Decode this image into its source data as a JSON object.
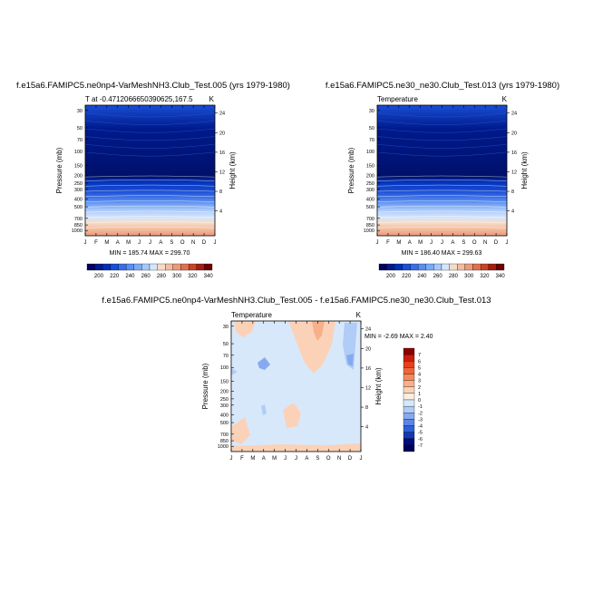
{
  "chart_data": [
    {
      "type": "heatmap",
      "variant": "contour-filled",
      "title": "f.e15a6.FAMIPC5.ne0np4-VarMeshNH3.Club_Test.005 (yrs 1979-1980)",
      "subtitle_left": "T at -0.4712066650390625,167.5",
      "units": "K",
      "ylabel": "Pressure (mb)",
      "ylabel_right": "Height (km)",
      "x_ticks": [
        "J",
        "F",
        "M",
        "A",
        "M",
        "J",
        "J",
        "A",
        "S",
        "O",
        "N",
        "D",
        "J"
      ],
      "y_ticks": [
        "30",
        "50",
        "70",
        "100",
        "150",
        "200",
        "250",
        "300",
        "400",
        "500",
        "700",
        "850",
        "1000"
      ],
      "y_ticks_right": [
        "24",
        "20",
        "16",
        "12",
        "8",
        "4"
      ],
      "minmax": "MIN = 185.74  MAX = 299.70",
      "colorbar": {
        "labels": [
          "200",
          "220",
          "240",
          "260",
          "280",
          "300",
          "320",
          "340"
        ],
        "colors": [
          "#000060",
          "#001a8c",
          "#0030b8",
          "#1a4ed6",
          "#3a6ee6",
          "#5a8ef0",
          "#7aaaf4",
          "#a8c8fa",
          "#d4e6fc",
          "#f6dcc8",
          "#f3bca0",
          "#ec9a78",
          "#e0704c",
          "#c84428",
          "#a81c10",
          "#6e0000"
        ]
      },
      "bands_top_to_bottom": [
        185,
        190,
        195,
        200,
        205,
        210,
        215,
        220,
        225,
        230,
        235,
        240,
        245,
        250,
        255,
        260,
        265,
        270,
        275,
        280,
        285,
        290,
        295,
        300
      ]
    },
    {
      "type": "heatmap",
      "variant": "contour-filled",
      "title": "f.e15a6.FAMIPC5.ne30_ne30.Club_Test.013 (yrs 1979-1980)",
      "subtitle_left": "Temperature",
      "units": "K",
      "ylabel": "Pressure (mb)",
      "ylabel_right": "Height (km)",
      "x_ticks": [
        "J",
        "F",
        "M",
        "A",
        "M",
        "J",
        "J",
        "A",
        "S",
        "O",
        "N",
        "D",
        "J"
      ],
      "y_ticks": [
        "30",
        "50",
        "70",
        "100",
        "150",
        "200",
        "250",
        "300",
        "400",
        "500",
        "700",
        "850",
        "1000"
      ],
      "y_ticks_right": [
        "24",
        "20",
        "16",
        "12",
        "8",
        "4"
      ],
      "minmax": "MIN = 186.40  MAX = 299.63",
      "colorbar": {
        "labels": [
          "200",
          "220",
          "240",
          "260",
          "280",
          "300",
          "320",
          "340"
        ],
        "colors": [
          "#000060",
          "#001a8c",
          "#0030b8",
          "#1a4ed6",
          "#3a6ee6",
          "#5a8ef0",
          "#7aaaf4",
          "#a8c8fa",
          "#d4e6fc",
          "#f6dcc8",
          "#f3bca0",
          "#ec9a78",
          "#e0704c",
          "#c84428",
          "#a81c10",
          "#6e0000"
        ]
      }
    },
    {
      "type": "heatmap",
      "variant": "contour-filled-difference",
      "title": "f.e15a6.FAMIPC5.ne0np4-VarMeshNH3.Club_Test.005 - f.e15a6.FAMIPC5.ne30_ne30.Club_Test.013",
      "subtitle_left": "Temperature",
      "units": "K",
      "ylabel": "Pressure (mb)",
      "ylabel_right": "Height (km)",
      "x_ticks": [
        "J",
        "F",
        "M",
        "A",
        "M",
        "J",
        "J",
        "A",
        "S",
        "O",
        "N",
        "D",
        "J"
      ],
      "y_ticks": [
        "30",
        "50",
        "70",
        "100",
        "150",
        "200",
        "250",
        "300",
        "400",
        "500",
        "700",
        "850",
        "1000"
      ],
      "y_ticks_right": [
        "24",
        "20",
        "16",
        "12",
        "8",
        "4"
      ],
      "minmax": "MIN =  -2.69 MAX =   2.40",
      "colorbar": {
        "labels": [
          "7",
          "6",
          "5",
          "4",
          "3",
          "2",
          "1",
          "0",
          "-1",
          "-2",
          "-3",
          "-4",
          "-5",
          "-6",
          "-7"
        ],
        "colors": [
          "#8c0000",
          "#c81e0a",
          "#e4401e",
          "#f0643a",
          "#f48a5c",
          "#f8b08a",
          "#fbd2b8",
          "#fdeee2",
          "#d8e8fb",
          "#b0ccf7",
          "#86aaf0",
          "#5a86e6",
          "#3060d6",
          "#1438b0",
          "#000c80",
          "#00005c"
        ]
      },
      "field_value_base": 0,
      "features": [
        {
          "label": "warm anomaly",
          "month": 7.8,
          "pressure": 30,
          "value": 2.4
        },
        {
          "label": "cool anomaly",
          "month": 3.6,
          "pressure": 70,
          "value": -2.0
        },
        {
          "label": "cool anomaly",
          "month": 11.5,
          "pressure": 70,
          "value": -2.7
        }
      ]
    }
  ]
}
